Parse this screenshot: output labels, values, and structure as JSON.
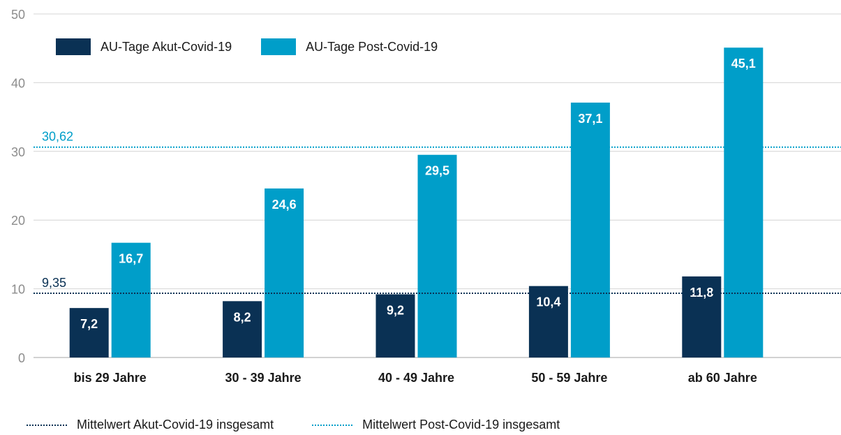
{
  "chart_data": {
    "type": "bar",
    "categories": [
      "bis 29 Jahre",
      "30 - 39 Jahre",
      "40 - 49 Jahre",
      "50 - 59 Jahre",
      "ab 60 Jahre"
    ],
    "series": [
      {
        "name": "AU-Tage Akut-Covid-19",
        "values": [
          7.2,
          8.2,
          9.2,
          10.4,
          11.8
        ],
        "labels": [
          "7,2",
          "8,2",
          "9,2",
          "10,4",
          "11,8"
        ],
        "color": "#0a3154"
      },
      {
        "name": "AU-Tage Post-Covid-19",
        "values": [
          16.7,
          24.6,
          29.5,
          37.1,
          45.1
        ],
        "labels": [
          "16,7",
          "24,6",
          "29,5",
          "37,1",
          "45,1"
        ],
        "color": "#009ec9"
      }
    ],
    "y_ticks": [
      "0",
      "10",
      "20",
      "30",
      "40",
      "50"
    ],
    "ylim": [
      0,
      50
    ],
    "grid": true,
    "legend_position": "top-left",
    "reference_lines": [
      {
        "name": "Mittelwert Akut-Covid-19 insgesamt",
        "value": 9.35,
        "label": "9,35",
        "color": "#0a3154",
        "style": "dotted"
      },
      {
        "name": "Mittelwert Post-Covid-19 insgesamt",
        "value": 30.62,
        "label": "30,62",
        "color": "#009ec9",
        "style": "dotted"
      }
    ]
  }
}
